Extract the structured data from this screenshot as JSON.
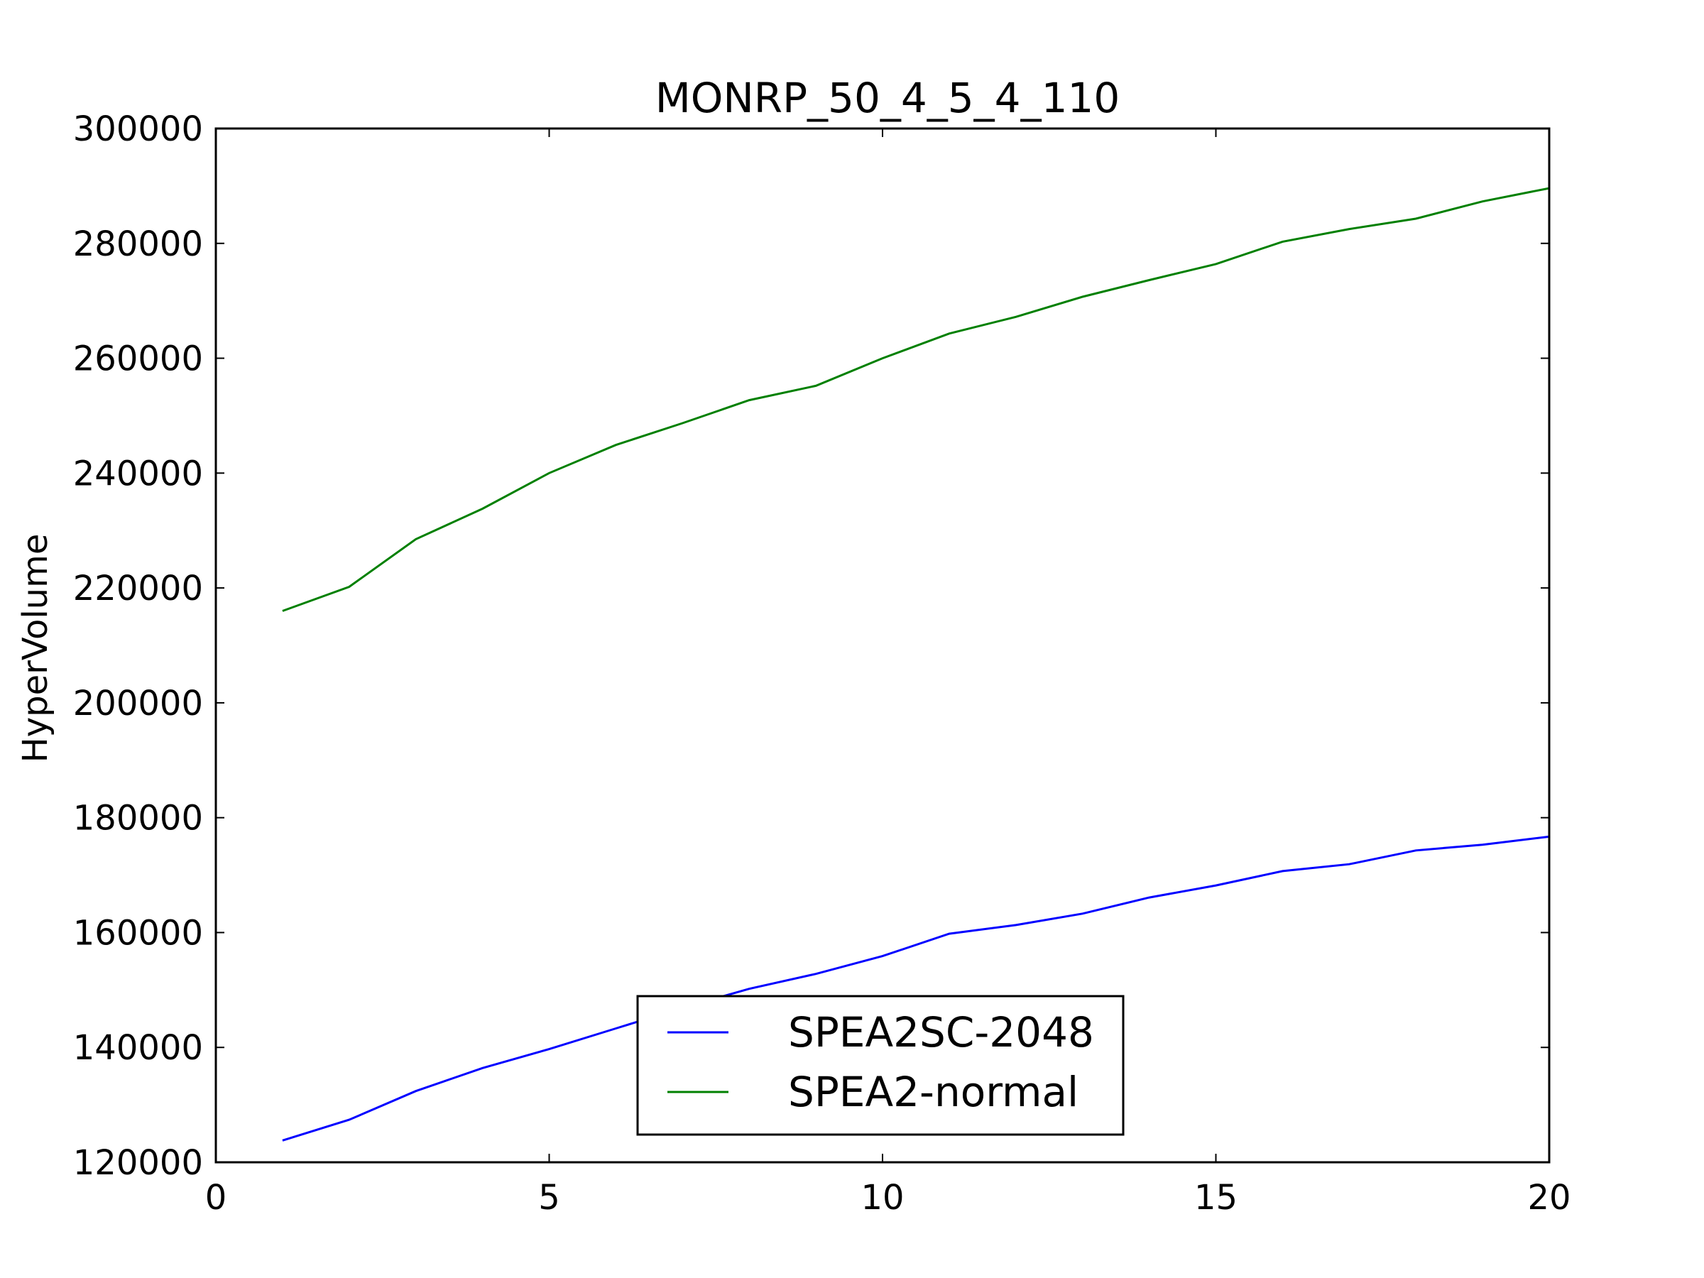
{
  "chart_data": {
    "type": "line",
    "title": "MONRP_50_4_5_4_110",
    "xlabel": "",
    "ylabel": "HyperVolume",
    "xlim": [
      0,
      20
    ],
    "ylim": [
      120000,
      300000
    ],
    "xticks": [
      0,
      5,
      10,
      15,
      20
    ],
    "xtick_labels": [
      "0",
      "5",
      "10",
      "15",
      "20"
    ],
    "yticks": [
      120000,
      140000,
      160000,
      180000,
      200000,
      220000,
      240000,
      260000,
      280000,
      300000
    ],
    "ytick_labels": [
      "120000",
      "140000",
      "160000",
      "180000",
      "200000",
      "220000",
      "240000",
      "260000",
      "280000",
      "300000"
    ],
    "grid": false,
    "legend_position": "lower-center",
    "x": [
      1,
      2,
      3,
      4,
      5,
      6,
      7,
      8,
      9,
      10,
      11,
      12,
      13,
      14,
      15,
      16,
      17,
      18,
      19,
      20
    ],
    "series": [
      {
        "name": "SPEA2SC-2048",
        "color": "#0000ff",
        "values": [
          123800,
          127400,
          132400,
          136400,
          139700,
          143300,
          146900,
          150200,
          152800,
          155900,
          159800,
          161300,
          163300,
          166100,
          168200,
          170700,
          171900,
          174300,
          175300,
          176700
        ]
      },
      {
        "name": "SPEA2-normal",
        "color": "#008000",
        "values": [
          216000,
          220200,
          228500,
          233800,
          240000,
          244900,
          248700,
          252700,
          255200,
          260000,
          264300,
          267200,
          270700,
          273600,
          276400,
          280300,
          282500,
          284300,
          287300,
          289600
        ]
      }
    ]
  }
}
